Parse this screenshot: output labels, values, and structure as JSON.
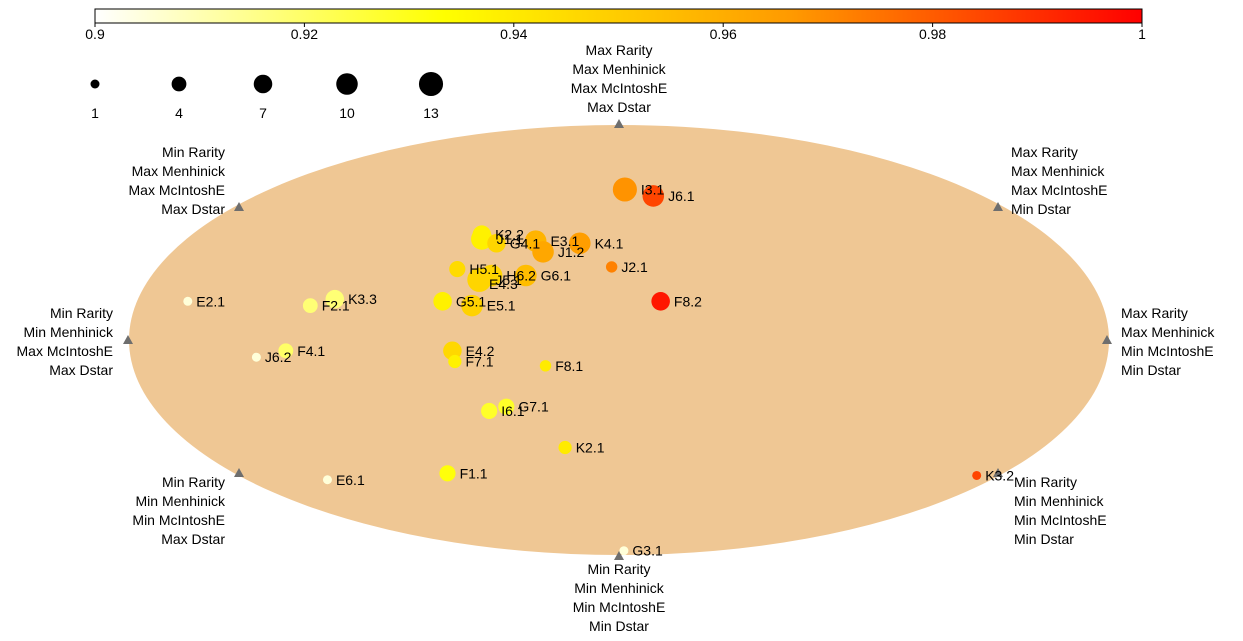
{
  "chart_data": {
    "type": "scatter",
    "title": "",
    "colorbar": {
      "min": 0.9,
      "max": 1,
      "ticks": [
        0.9,
        0.92,
        0.94,
        0.96,
        0.98,
        1
      ],
      "tick_labels": [
        "0.9",
        "0.92",
        "0.94",
        "0.96",
        "0.98",
        "1"
      ],
      "colors": [
        "#ffffff",
        "#ffff00",
        "#ff9900",
        "#ff0000"
      ]
    },
    "size_legend": {
      "values": [
        1,
        4,
        7,
        10,
        13
      ],
      "labels": [
        "1",
        "4",
        "7",
        "10",
        "13"
      ]
    },
    "ellipse_color": "#efc794",
    "axis_markers": [
      {
        "id": "top",
        "lines": [
          "Max Rarity",
          "Max Menhinick",
          "Max McIntoshE",
          "Max Dstar"
        ]
      },
      {
        "id": "top-left",
        "lines": [
          "Min Rarity",
          "Max Menhinick",
          "Max McIntoshE",
          "Max Dstar"
        ]
      },
      {
        "id": "top-right",
        "lines": [
          "Max Rarity",
          "Max Menhinick",
          "Max McIntoshE",
          "Min Dstar"
        ]
      },
      {
        "id": "left",
        "lines": [
          "Min Rarity",
          "Min Menhinick",
          "Max McIntoshE",
          "Max Dstar"
        ]
      },
      {
        "id": "right",
        "lines": [
          "Max Rarity",
          "Max Menhinick",
          "Min McIntoshE",
          "Min Dstar"
        ]
      },
      {
        "id": "bottom-left",
        "lines": [
          "Min Rarity",
          "Min Menhinick",
          "Min McIntoshE",
          "Max Dstar"
        ]
      },
      {
        "id": "bottom-right",
        "lines": [
          "Min Rarity",
          "Min Menhinick",
          "Min McIntoshE",
          "Min Dstar"
        ]
      },
      {
        "id": "bottom",
        "lines": [
          "Min Rarity",
          "Min Menhinick",
          "Min McIntoshE",
          "Min Dstar"
        ]
      }
    ],
    "xlim": [
      -1,
      1
    ],
    "ylim": [
      -1,
      1
    ],
    "points": [
      {
        "label": "I3.1",
        "x": 0.012,
        "y": 0.7,
        "size": 13,
        "value": 0.968
      },
      {
        "label": "J6.1",
        "x": 0.07,
        "y": 0.67,
        "size": 10,
        "value": 0.985
      },
      {
        "label": "K2.2",
        "x": -0.28,
        "y": 0.49,
        "size": 7,
        "value": 0.938
      },
      {
        "label": "J1.1",
        "x": -0.28,
        "y": 0.47,
        "size": 10,
        "value": 0.938
      },
      {
        "label": "G4.1",
        "x": -0.25,
        "y": 0.45,
        "size": 7,
        "value": 0.947
      },
      {
        "label": "E3.1",
        "x": -0.17,
        "y": 0.46,
        "size": 10,
        "value": 0.958
      },
      {
        "label": "K4.1",
        "x": -0.08,
        "y": 0.45,
        "size": 10,
        "value": 0.965
      },
      {
        "label": "J1.2",
        "x": -0.155,
        "y": 0.41,
        "size": 10,
        "value": 0.962
      },
      {
        "label": "J2.1",
        "x": -0.015,
        "y": 0.34,
        "size": 2,
        "value": 0.972
      },
      {
        "label": "H5.1",
        "x": -0.33,
        "y": 0.33,
        "size": 5,
        "value": 0.945
      },
      {
        "label": "H6.2",
        "x": -0.26,
        "y": 0.3,
        "size": 10,
        "value": 0.947
      },
      {
        "label": "G6.1",
        "x": -0.19,
        "y": 0.3,
        "size": 10,
        "value": 0.955
      },
      {
        "label": "J5.1",
        "x": -0.285,
        "y": 0.28,
        "size": 13,
        "value": 0.947
      },
      {
        "label": "E4.3",
        "x": -0.285,
        "y": 0.26,
        "size": 2,
        "value": 0.947
      },
      {
        "label": "G5.1",
        "x": -0.36,
        "y": 0.18,
        "size": 7,
        "value": 0.938
      },
      {
        "label": "E5.1",
        "x": -0.3,
        "y": 0.16,
        "size": 10,
        "value": 0.948
      },
      {
        "label": "F8.2",
        "x": 0.085,
        "y": 0.18,
        "size": 7,
        "value": 0.995
      },
      {
        "label": "K3.3",
        "x": -0.58,
        "y": 0.19,
        "size": 7,
        "value": 0.918
      },
      {
        "label": "F2.1",
        "x": -0.63,
        "y": 0.16,
        "size": 4,
        "value": 0.918
      },
      {
        "label": "E2.1",
        "x": -0.88,
        "y": 0.18,
        "size": 1,
        "value": 0.905
      },
      {
        "label": "E4.2",
        "x": -0.34,
        "y": -0.05,
        "size": 7,
        "value": 0.946
      },
      {
        "label": "F7.1",
        "x": -0.335,
        "y": -0.1,
        "size": 3,
        "value": 0.938
      },
      {
        "label": "F4.1",
        "x": -0.68,
        "y": -0.05,
        "size": 4,
        "value": 0.92
      },
      {
        "label": "J6.2",
        "x": -0.74,
        "y": -0.08,
        "size": 1,
        "value": 0.905
      },
      {
        "label": "F8.1",
        "x": -0.15,
        "y": -0.12,
        "size": 2,
        "value": 0.94
      },
      {
        "label": "G7.1",
        "x": -0.23,
        "y": -0.31,
        "size": 5,
        "value": 0.928
      },
      {
        "label": "I6.1",
        "x": -0.265,
        "y": -0.33,
        "size": 5,
        "value": 0.928
      },
      {
        "label": "K2.1",
        "x": -0.11,
        "y": -0.5,
        "size": 3,
        "value": 0.94
      },
      {
        "label": "F1.1",
        "x": -0.35,
        "y": -0.62,
        "size": 5,
        "value": 0.932
      },
      {
        "label": "E6.1",
        "x": -0.595,
        "y": -0.65,
        "size": 1,
        "value": 0.905
      },
      {
        "label": "K3.2",
        "x": 0.73,
        "y": -0.63,
        "size": 1,
        "value": 0.985
      },
      {
        "label": "G3.1",
        "x": 0.01,
        "y": -0.98,
        "size": 1,
        "value": 0.905
      }
    ]
  }
}
